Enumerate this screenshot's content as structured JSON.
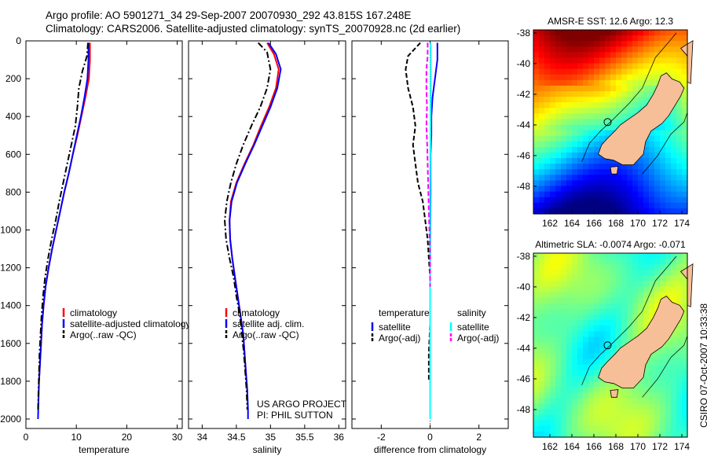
{
  "header": {
    "line1": "Argo profile: AO 5901271_34 29-Sep-2007 20070930_292 43.815S 167.248E",
    "line2": "Climatology: CARS2006. Satellite-adjusted climatology: synTS_20070928.nc (2d earlier)"
  },
  "credit": {
    "line1": "US ARGO PROJECT",
    "line2": "PI: PHIL SUTTON"
  },
  "stamp": "CSIRO 07-Oct-2007 10:33:38",
  "colors": {
    "red": "#ff0000",
    "blue": "#0000ff",
    "black": "#000000",
    "cyan": "#00ffff",
    "magenta": "#ff00ff",
    "land": "#f7bf97"
  },
  "chart_data": [
    {
      "type": "line",
      "xlabel": "temperature",
      "xlim": [
        0,
        31
      ],
      "ylim": [
        2050,
        0
      ],
      "y_reversed": true,
      "xticks": [
        0,
        10,
        20,
        30
      ],
      "yticks": [
        0,
        200,
        400,
        600,
        800,
        1000,
        1200,
        1400,
        1600,
        1800,
        2000
      ],
      "legend": {
        "placement": "lower-left",
        "entries": [
          "climatology",
          "satellite-adjusted climatology",
          "Argo(..raw -QC)"
        ]
      },
      "series": [
        {
          "name": "climatology",
          "color": "#ff0000",
          "dash": "solid",
          "points": [
            [
              12.7,
              10
            ],
            [
              12.7,
              100
            ],
            [
              12.5,
              200
            ],
            [
              11.8,
              300
            ],
            [
              11.0,
              400
            ],
            [
              10.2,
              500
            ],
            [
              9.3,
              600
            ],
            [
              8.5,
              700
            ],
            [
              7.6,
              800
            ],
            [
              6.8,
              900
            ],
            [
              6.0,
              1000
            ],
            [
              5.2,
              1100
            ],
            [
              4.5,
              1200
            ],
            [
              3.9,
              1300
            ],
            [
              3.5,
              1400
            ],
            [
              3.2,
              1500
            ],
            [
              3.0,
              1600
            ],
            [
              2.8,
              1700
            ],
            [
              2.6,
              1800
            ]
          ]
        },
        {
          "name": "satellite-adjusted climatology",
          "color": "#0000ff",
          "dash": "solid",
          "points": [
            [
              12.4,
              10
            ],
            [
              12.4,
              100
            ],
            [
              12.2,
              200
            ],
            [
              11.6,
              300
            ],
            [
              10.9,
              400
            ],
            [
              10.1,
              500
            ],
            [
              9.3,
              600
            ],
            [
              8.5,
              700
            ],
            [
              7.6,
              800
            ],
            [
              6.8,
              900
            ],
            [
              6.0,
              1000
            ],
            [
              5.2,
              1100
            ],
            [
              4.5,
              1200
            ],
            [
              3.9,
              1300
            ],
            [
              3.5,
              1400
            ],
            [
              3.2,
              1500
            ],
            [
              3.0,
              1600
            ],
            [
              2.8,
              1700
            ],
            [
              2.6,
              1800
            ],
            [
              2.5,
              1900
            ],
            [
              2.4,
              2000
            ]
          ]
        },
        {
          "name": "Argo(..raw -QC)",
          "color": "#000000",
          "dash": "dashdot",
          "points": [
            [
              12.3,
              10
            ],
            [
              12.1,
              80
            ],
            [
              11.2,
              160
            ],
            [
              10.5,
              250
            ],
            [
              10.2,
              350
            ],
            [
              9.8,
              450
            ],
            [
              9.0,
              550
            ],
            [
              8.2,
              650
            ],
            [
              7.4,
              750
            ],
            [
              6.6,
              850
            ],
            [
              5.9,
              950
            ],
            [
              5.1,
              1050
            ],
            [
              4.4,
              1150
            ],
            [
              3.8,
              1250
            ],
            [
              3.4,
              1350
            ],
            [
              3.1,
              1450
            ],
            [
              2.9,
              1550
            ],
            [
              2.7,
              1650
            ],
            [
              2.6,
              1750
            ],
            [
              2.5,
              1850
            ],
            [
              2.4,
              1950
            ]
          ]
        }
      ]
    },
    {
      "type": "line",
      "xlabel": "salinity",
      "xlim": [
        33.8,
        36.1
      ],
      "ylim": [
        2050,
        0
      ],
      "y_reversed": true,
      "xticks": [
        34,
        34.5,
        35,
        35.5,
        36
      ],
      "legend": {
        "placement": "lower-left",
        "entries": [
          "climatology",
          "satellite adj. clim.",
          "Argo(..raw -QC)"
        ]
      },
      "series": [
        {
          "name": "climatology",
          "color": "#ff0000",
          "dash": "solid",
          "points": [
            [
              34.95,
              10
            ],
            [
              35.05,
              70
            ],
            [
              35.12,
              150
            ],
            [
              35.08,
              250
            ],
            [
              34.98,
              350
            ],
            [
              34.86,
              450
            ],
            [
              34.75,
              550
            ],
            [
              34.62,
              650
            ],
            [
              34.5,
              750
            ],
            [
              34.42,
              850
            ],
            [
              34.4,
              950
            ],
            [
              34.41,
              1050
            ],
            [
              34.44,
              1150
            ],
            [
              34.48,
              1250
            ],
            [
              34.52,
              1350
            ],
            [
              34.56,
              1450
            ],
            [
              34.6,
              1550
            ],
            [
              34.62,
              1650
            ],
            [
              34.64,
              1750
            ],
            [
              34.66,
              1850
            ]
          ]
        },
        {
          "name": "satellite adj. clim.",
          "color": "#0000ff",
          "dash": "solid",
          "points": [
            [
              34.97,
              10
            ],
            [
              35.08,
              70
            ],
            [
              35.15,
              150
            ],
            [
              35.1,
              250
            ],
            [
              35.0,
              350
            ],
            [
              34.88,
              450
            ],
            [
              34.76,
              550
            ],
            [
              34.63,
              650
            ],
            [
              34.51,
              750
            ],
            [
              34.43,
              850
            ],
            [
              34.4,
              950
            ],
            [
              34.41,
              1050
            ],
            [
              34.44,
              1150
            ],
            [
              34.48,
              1250
            ],
            [
              34.52,
              1350
            ],
            [
              34.56,
              1450
            ],
            [
              34.6,
              1550
            ],
            [
              34.62,
              1650
            ],
            [
              34.64,
              1750
            ],
            [
              34.66,
              1850
            ],
            [
              34.67,
              1950
            ],
            [
              34.67,
              2000
            ]
          ]
        },
        {
          "name": "Argo(..raw -QC)",
          "color": "#000000",
          "dash": "dashdot",
          "points": [
            [
              34.82,
              10
            ],
            [
              34.95,
              60
            ],
            [
              35.0,
              150
            ],
            [
              34.95,
              250
            ],
            [
              34.85,
              350
            ],
            [
              34.72,
              450
            ],
            [
              34.6,
              550
            ],
            [
              34.5,
              650
            ],
            [
              34.42,
              750
            ],
            [
              34.36,
              850
            ],
            [
              34.33,
              950
            ],
            [
              34.35,
              1050
            ],
            [
              34.4,
              1150
            ],
            [
              34.46,
              1250
            ],
            [
              34.5,
              1350
            ],
            [
              34.55,
              1450
            ],
            [
              34.58,
              1550
            ],
            [
              34.61,
              1650
            ],
            [
              34.63,
              1750
            ],
            [
              34.65,
              1850
            ],
            [
              34.66,
              1950
            ]
          ]
        }
      ]
    },
    {
      "type": "line",
      "xlabel": "difference from climatology",
      "xlim": [
        -3.2,
        3.2
      ],
      "ylim": [
        2050,
        0
      ],
      "y_reversed": true,
      "xticks": [
        -2,
        0,
        2
      ],
      "legend": {
        "placement": "lower-left",
        "groups": [
          {
            "heading": "temperature",
            "entries": [
              "satellite",
              "Argo(-adj)"
            ]
          },
          {
            "heading": "salinity",
            "entries": [
              "satellite",
              "Argo(-adj)"
            ]
          }
        ]
      },
      "series": [
        {
          "name": "temperature satellite",
          "color": "#0000ff",
          "dash": "solid",
          "points": [
            [
              0.3,
              10
            ],
            [
              0.3,
              100
            ],
            [
              0.2,
              200
            ],
            [
              0.1,
              300
            ],
            [
              0.05,
              400
            ],
            [
              0.05,
              500
            ],
            [
              0.02,
              600
            ],
            [
              0.02,
              800
            ],
            [
              0.01,
              1000
            ],
            [
              0.0,
              1200
            ],
            [
              0.0,
              1400
            ],
            [
              0.0,
              1600
            ],
            [
              0.0,
              1800
            ]
          ]
        },
        {
          "name": "temperature Argo(-adj)",
          "color": "#000000",
          "dash": "dashed",
          "points": [
            [
              -0.4,
              10
            ],
            [
              -0.9,
              80
            ],
            [
              -1.0,
              150
            ],
            [
              -0.9,
              250
            ],
            [
              -0.7,
              350
            ],
            [
              -0.6,
              450
            ],
            [
              -0.7,
              550
            ],
            [
              -0.6,
              650
            ],
            [
              -0.5,
              750
            ],
            [
              -0.3,
              850
            ],
            [
              -0.2,
              950
            ],
            [
              -0.1,
              1050
            ],
            [
              -0.05,
              1150
            ],
            [
              0.0,
              1250
            ],
            [
              0.0,
              1350
            ],
            [
              0.0,
              1500
            ],
            [
              -0.05,
              1650
            ],
            [
              -0.05,
              1800
            ]
          ]
        },
        {
          "name": "salinity satellite",
          "color": "#00ffff",
          "dash": "solid",
          "points": [
            [
              0.02,
              10
            ],
            [
              0.03,
              100
            ],
            [
              0.03,
              200
            ],
            [
              0.02,
              400
            ],
            [
              0.01,
              600
            ],
            [
              0.0,
              800
            ],
            [
              0.0,
              1000
            ],
            [
              0.0,
              1200
            ],
            [
              0.0,
              1500
            ],
            [
              0.0,
              1800
            ],
            [
              0.0,
              2000
            ]
          ]
        },
        {
          "name": "salinity Argo(-adj)",
          "color": "#ff00ff",
          "dash": "dashed",
          "points": [
            [
              -0.1,
              10
            ],
            [
              -0.1,
              80
            ],
            [
              -0.15,
              150
            ],
            [
              -0.15,
              250
            ],
            [
              -0.13,
              350
            ],
            [
              -0.15,
              450
            ],
            [
              -0.12,
              550
            ],
            [
              -0.1,
              650
            ],
            [
              -0.08,
              750
            ],
            [
              -0.06,
              850
            ],
            [
              -0.04,
              950
            ],
            [
              -0.02,
              1050
            ],
            [
              0.0,
              1150
            ],
            [
              0.0,
              1300
            ]
          ]
        }
      ]
    },
    {
      "type": "heatmap",
      "title": "AMSR-E SST: 12.6 Argo: 12.3",
      "xticks": [
        162,
        164,
        166,
        168,
        170,
        172,
        174
      ],
      "yticks": [
        -38,
        -40,
        -42,
        -44,
        -46,
        -48
      ],
      "xlim": [
        160.5,
        174.5
      ],
      "ylim": [
        -49.8,
        -37.8
      ],
      "marker": {
        "lon": 167.248,
        "lat": -43.815
      },
      "colormap": "jet"
    },
    {
      "type": "heatmap",
      "title": "Altimetric SLA: -0.0074 Argo: -0.071",
      "xticks": [
        162,
        164,
        166,
        168,
        170,
        172,
        174
      ],
      "yticks": [
        -38,
        -40,
        -42,
        -44,
        -46,
        -48
      ],
      "xlim": [
        160.5,
        174.5
      ],
      "ylim": [
        -49.8,
        -37.8
      ],
      "marker": {
        "lon": 167.248,
        "lat": -43.815
      },
      "colormap": "jet"
    }
  ]
}
